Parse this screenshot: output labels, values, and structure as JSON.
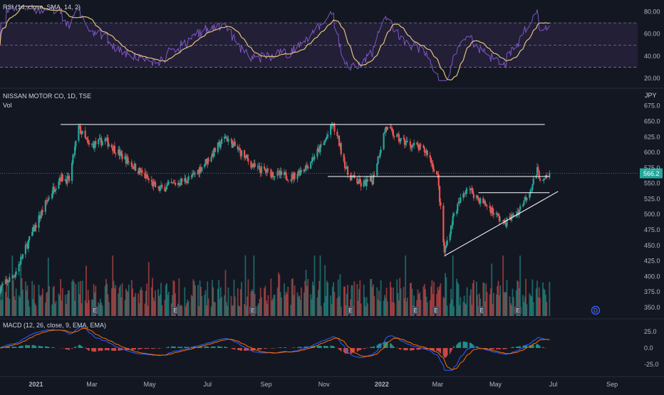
{
  "chart_data": [
    {
      "type": "line",
      "title": "RSI (14, close, SMA, 14, 2)",
      "series": [],
      "y_ticks": [
        "80.00",
        "60.00",
        "40.00",
        "20.00"
      ],
      "ylim": [
        15,
        88
      ],
      "bands": [
        30,
        50,
        70
      ],
      "colors": {
        "rsi": "#7e57c2",
        "sma": "#e5c07b",
        "band_fill": "#2a2340"
      }
    },
    {
      "type": "candlestick",
      "title": "NISSAN MOTOR CO, 1D, TSE",
      "volume_label": "Vol",
      "currency": "JPY",
      "last_price": "566.2",
      "ylim": [
        335,
        685
      ],
      "y_ticks": [
        "675.0",
        "650.0",
        "625.0",
        "600.0",
        "575.0",
        "550.0",
        "525.0",
        "500.0",
        "475.0",
        "450.0",
        "425.0",
        "400.0",
        "375.0",
        "350.0"
      ],
      "x_ticks": [
        "2021",
        "Mar",
        "May",
        "Jul",
        "Sep",
        "Nov",
        "2022",
        "Mar",
        "May",
        "Jul",
        "Sep"
      ],
      "x_tick_bold": [
        true,
        false,
        false,
        false,
        false,
        false,
        true,
        false,
        false,
        false,
        false
      ],
      "trendlines": [
        {
          "name": "resistance",
          "from": [
            "2021-01-27",
            645
          ],
          "to": [
            "2022-06-22",
            645
          ]
        },
        {
          "name": "range-top",
          "from": [
            "2021-11-05",
            561
          ],
          "to": [
            "2022-06-27",
            561
          ]
        },
        {
          "name": "flag-top",
          "from": [
            "2022-04-13",
            535
          ],
          "to": [
            "2022-06-27",
            535
          ]
        },
        {
          "name": "ascending-support",
          "from": [
            "2022-03-08",
            433
          ],
          "to": [
            "2022-07-06",
            537
          ]
        }
      ],
      "event_markers": [
        "E",
        "E",
        "E",
        "E",
        "E",
        "E",
        "E",
        "E",
        "D",
        "E",
        "E"
      ],
      "colors": {
        "up": "#26a69a",
        "down": "#ef5350",
        "line": "#ffffff",
        "price_tag": "#26a69a",
        "event": "#4a5062",
        "dividend": "#2962ff",
        "future_event": "#9c7bd6"
      }
    },
    {
      "type": "line",
      "title": "MACD (12, 26, close, 9, EMA, EMA)",
      "series": [],
      "y_ticks": [
        "25.0",
        "0.0",
        "-25.0"
      ],
      "ylim": [
        -36,
        36
      ],
      "colors": {
        "macd": "#2962ff",
        "signal": "#ff6d00",
        "hist_up": "#26a69a",
        "hist_down": "#ef5350"
      }
    }
  ]
}
